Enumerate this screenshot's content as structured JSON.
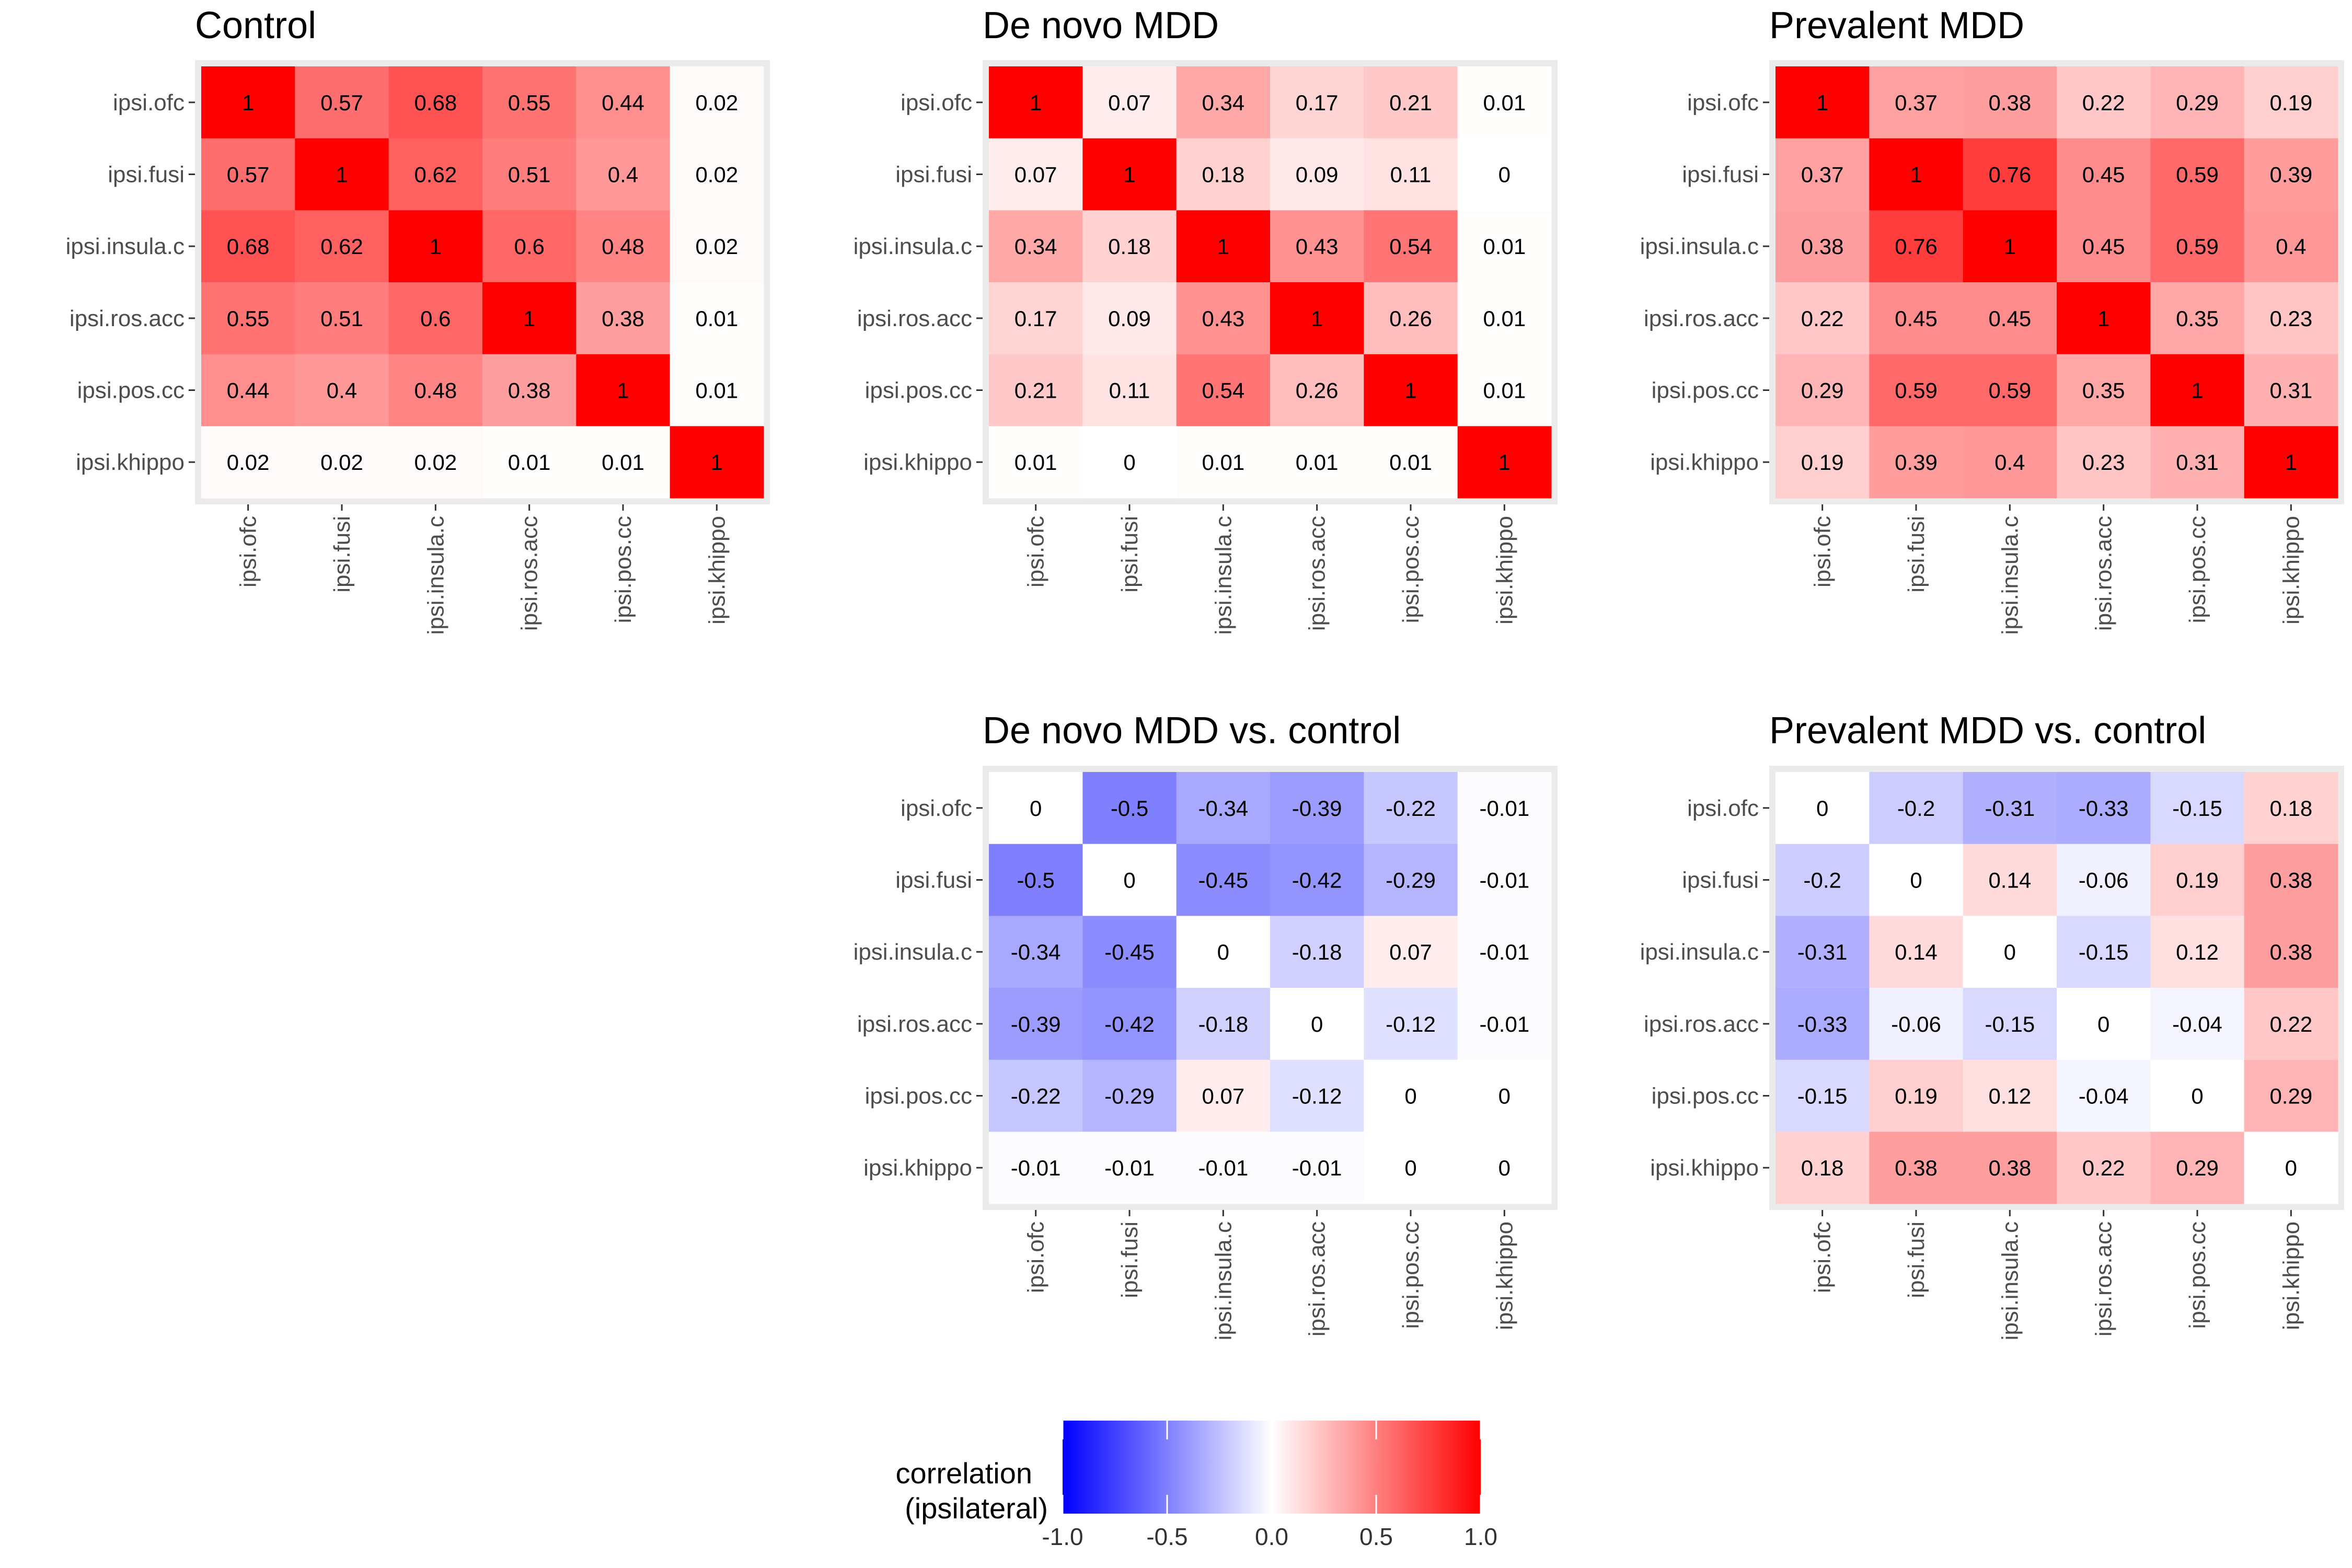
{
  "variables": [
    "ipsi.ofc",
    "ipsi.fusi",
    "ipsi.insula.c",
    "ipsi.ros.acc",
    "ipsi.pos.cc",
    "ipsi.khippo"
  ],
  "chart_data": [
    {
      "type": "heatmap",
      "title": "Control",
      "x_categories": [
        "ipsi.ofc",
        "ipsi.fusi",
        "ipsi.insula.c",
        "ipsi.ros.acc",
        "ipsi.pos.cc",
        "ipsi.khippo"
      ],
      "y_categories": [
        "ipsi.ofc",
        "ipsi.fusi",
        "ipsi.insula.c",
        "ipsi.ros.acc",
        "ipsi.pos.cc",
        "ipsi.khippo"
      ],
      "values": [
        [
          1,
          0.57,
          0.68,
          0.55,
          0.44,
          0.02
        ],
        [
          0.57,
          1,
          0.62,
          0.51,
          0.4,
          0.02
        ],
        [
          0.68,
          0.62,
          1,
          0.6,
          0.48,
          0.02
        ],
        [
          0.55,
          0.51,
          0.6,
          1,
          0.38,
          0.01
        ],
        [
          0.44,
          0.4,
          0.48,
          0.38,
          1,
          0.01
        ],
        [
          0.02,
          0.02,
          0.02,
          0.01,
          0.01,
          1
        ]
      ]
    },
    {
      "type": "heatmap",
      "title": "De novo MDD",
      "x_categories": [
        "ipsi.ofc",
        "ipsi.fusi",
        "ipsi.insula.c",
        "ipsi.ros.acc",
        "ipsi.pos.cc",
        "ipsi.khippo"
      ],
      "y_categories": [
        "ipsi.ofc",
        "ipsi.fusi",
        "ipsi.insula.c",
        "ipsi.ros.acc",
        "ipsi.pos.cc",
        "ipsi.khippo"
      ],
      "values": [
        [
          1,
          0.07,
          0.34,
          0.17,
          0.21,
          0.01
        ],
        [
          0.07,
          1,
          0.18,
          0.09,
          0.11,
          0
        ],
        [
          0.34,
          0.18,
          1,
          0.43,
          0.54,
          0.01
        ],
        [
          0.17,
          0.09,
          0.43,
          1,
          0.26,
          0.01
        ],
        [
          0.21,
          0.11,
          0.54,
          0.26,
          1,
          0.01
        ],
        [
          0.01,
          0,
          0.01,
          0.01,
          0.01,
          1
        ]
      ]
    },
    {
      "type": "heatmap",
      "title": "Prevalent MDD",
      "x_categories": [
        "ipsi.ofc",
        "ipsi.fusi",
        "ipsi.insula.c",
        "ipsi.ros.acc",
        "ipsi.pos.cc",
        "ipsi.khippo"
      ],
      "y_categories": [
        "ipsi.ofc",
        "ipsi.fusi",
        "ipsi.insula.c",
        "ipsi.ros.acc",
        "ipsi.pos.cc",
        "ipsi.khippo"
      ],
      "values": [
        [
          1,
          0.37,
          0.38,
          0.22,
          0.29,
          0.19
        ],
        [
          0.37,
          1,
          0.76,
          0.45,
          0.59,
          0.39
        ],
        [
          0.38,
          0.76,
          1,
          0.45,
          0.59,
          0.4
        ],
        [
          0.22,
          0.45,
          0.45,
          1,
          0.35,
          0.23
        ],
        [
          0.29,
          0.59,
          0.59,
          0.35,
          1,
          0.31
        ],
        [
          0.19,
          0.39,
          0.4,
          0.23,
          0.31,
          1
        ]
      ]
    },
    {
      "type": "heatmap",
      "title": "De novo MDD vs. control",
      "x_categories": [
        "ipsi.ofc",
        "ipsi.fusi",
        "ipsi.insula.c",
        "ipsi.ros.acc",
        "ipsi.pos.cc",
        "ipsi.khippo"
      ],
      "y_categories": [
        "ipsi.ofc",
        "ipsi.fusi",
        "ipsi.insula.c",
        "ipsi.ros.acc",
        "ipsi.pos.cc",
        "ipsi.khippo"
      ],
      "values": [
        [
          0,
          -0.5,
          -0.34,
          -0.39,
          -0.22,
          -0.01
        ],
        [
          -0.5,
          0,
          -0.45,
          -0.42,
          -0.29,
          -0.01
        ],
        [
          -0.34,
          -0.45,
          0,
          -0.18,
          0.07,
          -0.01
        ],
        [
          -0.39,
          -0.42,
          -0.18,
          0,
          -0.12,
          -0.01
        ],
        [
          -0.22,
          -0.29,
          0.07,
          -0.12,
          0,
          0
        ],
        [
          -0.01,
          -0.01,
          -0.01,
          -0.01,
          0,
          0
        ]
      ]
    },
    {
      "type": "heatmap",
      "title": "Prevalent MDD vs. control",
      "x_categories": [
        "ipsi.ofc",
        "ipsi.fusi",
        "ipsi.insula.c",
        "ipsi.ros.acc",
        "ipsi.pos.cc",
        "ipsi.khippo"
      ],
      "y_categories": [
        "ipsi.ofc",
        "ipsi.fusi",
        "ipsi.insula.c",
        "ipsi.ros.acc",
        "ipsi.pos.cc",
        "ipsi.khippo"
      ],
      "values": [
        [
          0,
          -0.2,
          -0.31,
          -0.33,
          -0.15,
          0.18
        ],
        [
          -0.2,
          0,
          0.14,
          -0.06,
          0.19,
          0.38
        ],
        [
          -0.31,
          0.14,
          0,
          -0.15,
          0.12,
          0.38
        ],
        [
          -0.33,
          -0.06,
          -0.15,
          0,
          -0.04,
          0.22
        ],
        [
          -0.15,
          0.19,
          0.12,
          -0.04,
          0,
          0.29
        ],
        [
          0.18,
          0.38,
          0.38,
          0.22,
          0.29,
          0
        ]
      ]
    }
  ],
  "legend": {
    "title_line1": "correlation",
    "title_line2": "(ipsilateral)",
    "min": -1,
    "max": 1,
    "tick_values": [
      -1,
      -0.5,
      0,
      0.5,
      1
    ],
    "tick_labels": [
      "-1.0",
      "-0.5",
      "0.0",
      "0.5",
      "1.0"
    ],
    "colors": {
      "low": "#0000ff",
      "mid": "#ffffff",
      "high": "#ff0000"
    }
  },
  "colors": {
    "panel_background": "#ebebeb",
    "tick_text": "#4d4d4d",
    "cell_text": "#000000"
  }
}
